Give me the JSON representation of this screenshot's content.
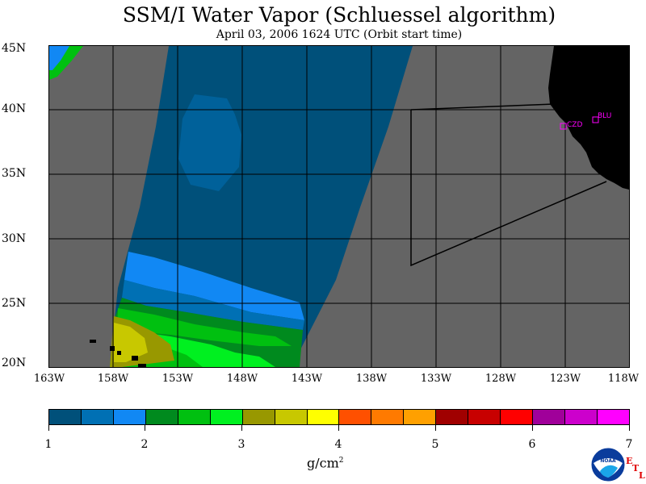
{
  "title": "SSM/I Water Vapor (Schluessel algorithm)",
  "subtitle": "April 03, 2006  1624 UTC  (Orbit start time)",
  "lat_labels": [
    "45N",
    "40N",
    "35N",
    "30N",
    "25N",
    "20N"
  ],
  "lon_labels": [
    "163W",
    "158W",
    "153W",
    "148W",
    "143W",
    "138W",
    "133W",
    "128W",
    "123W",
    "118W"
  ],
  "stations": [
    "CZD",
    "BLU"
  ],
  "colorbar": {
    "ticks": [
      "1",
      "2",
      "3",
      "4",
      "5",
      "6",
      "7"
    ],
    "units": "g/cm",
    "units_sup": "2",
    "colors": [
      "#00507a",
      "#0070b4",
      "#1188f4",
      "#008a1e",
      "#00c010",
      "#00f020",
      "#989800",
      "#c8c800",
      "#ffff00",
      "#ff5000",
      "#ff7a00",
      "#ffa000",
      "#a00000",
      "#c80000",
      "#ff0000",
      "#a0009a",
      "#cc00cc",
      "#ff00ff"
    ]
  },
  "logo": {
    "name": "NOAA",
    "etl": [
      "E",
      "T",
      "L"
    ]
  },
  "colors": {
    "no_data": "#646464",
    "land": "#000000",
    "station_marker": "#ff00ff"
  }
}
